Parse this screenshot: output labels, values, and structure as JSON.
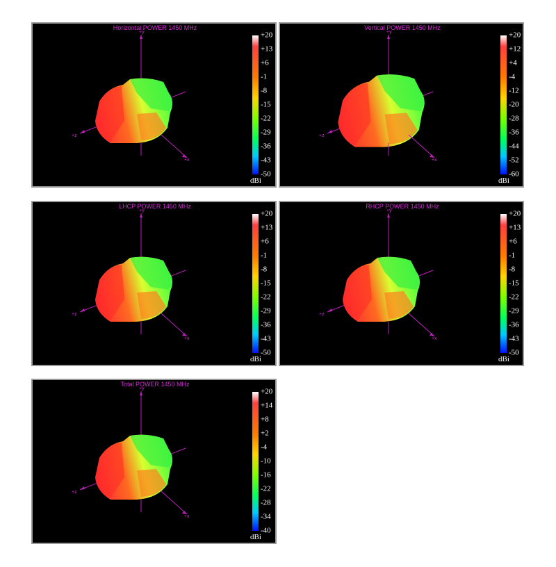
{
  "panels": [
    {
      "title": "Horizontal POWER 1450  MHz",
      "axes": {
        "y": "+y",
        "z": "+z",
        "x": "+x"
      },
      "colorbar": {
        "ticks": [
          "+20",
          "+13",
          "+6",
          "-1",
          "-8",
          "-15",
          "-22",
          "-29",
          "-36",
          "-43",
          "-50"
        ],
        "unit": "dBi"
      }
    },
    {
      "title": "Vertical POWER 1450  MHz",
      "axes": {
        "y": "+y",
        "z": "+z",
        "x": "+x"
      },
      "colorbar": {
        "ticks": [
          "+20",
          "+12",
          "+4",
          "-4",
          "-12",
          "-20",
          "-28",
          "-36",
          "-44",
          "-52",
          "-60"
        ],
        "unit": "dBi"
      }
    },
    {
      "title": "LHCP POWER 1450  MHz",
      "axes": {
        "y": "+y",
        "z": "+z",
        "x": "+x"
      },
      "colorbar": {
        "ticks": [
          "+20",
          "+13",
          "+6",
          "-1",
          "-8",
          "-15",
          "-22",
          "-29",
          "-36",
          "-43",
          "-50"
        ],
        "unit": "dBi"
      }
    },
    {
      "title": "RHCP POWER 1450  MHz",
      "axes": {
        "y": "+y",
        "z": "+z",
        "x": "+x"
      },
      "colorbar": {
        "ticks": [
          "+20",
          "+13",
          "+6",
          "-1",
          "-8",
          "-15",
          "-22",
          "-29",
          "-36",
          "-43",
          "-50"
        ],
        "unit": "dBi"
      }
    },
    {
      "title": "Total POWER 1450  MHz",
      "axes": {
        "y": "+y",
        "z": "+z",
        "x": "+x"
      },
      "colorbar": {
        "ticks": [
          "+20",
          "+14",
          "+8",
          "+2",
          "-4",
          "-10",
          "-16",
          "-22",
          "-28",
          "-34",
          "-40"
        ],
        "unit": "dBi"
      }
    }
  ]
}
